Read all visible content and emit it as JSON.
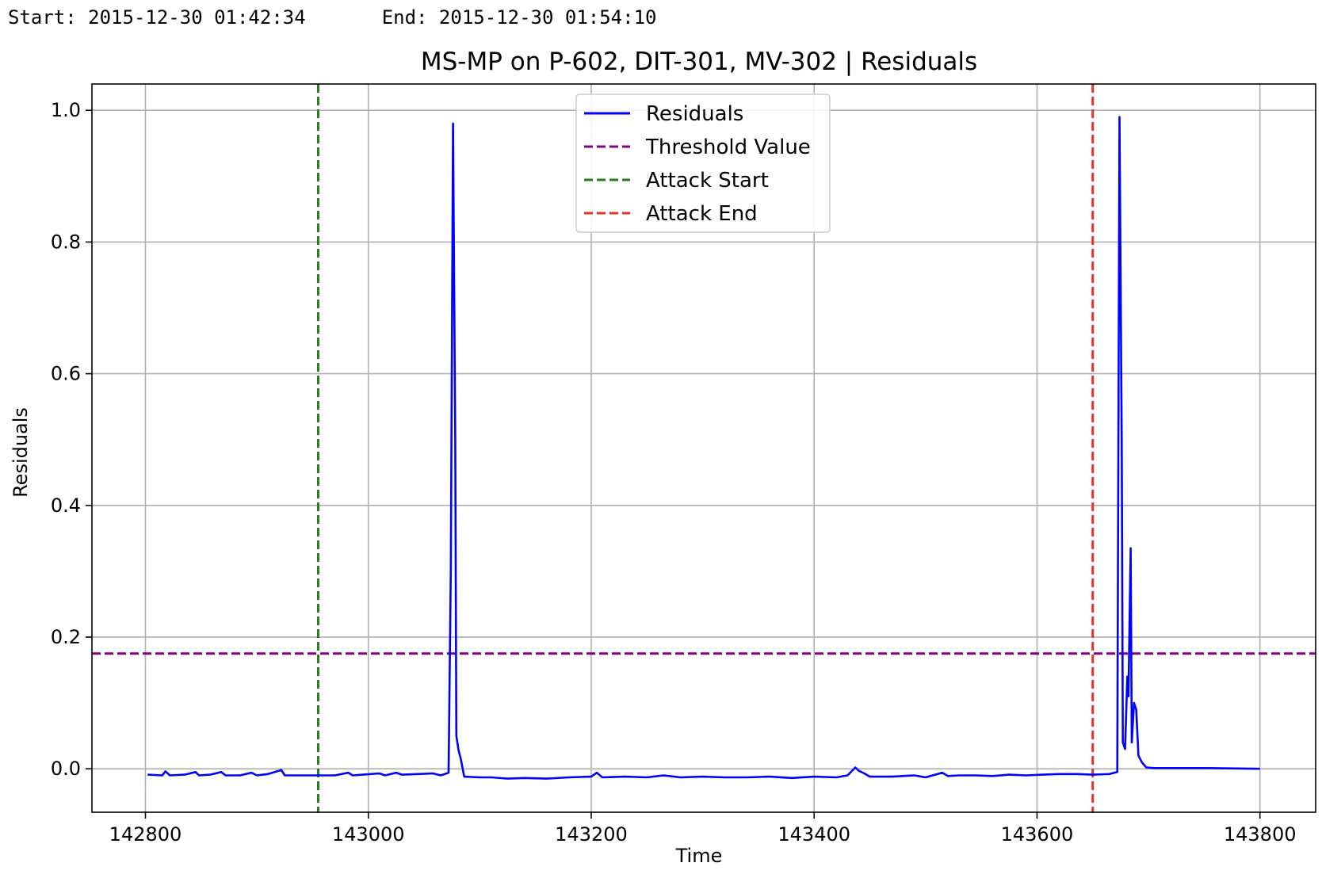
{
  "header": {
    "start_text": "Start: 2015-12-30 01:42:34",
    "end_text": "End: 2015-12-30 01:54:10"
  },
  "chart_data": {
    "type": "line",
    "title": "MS-MP  on  P-602, DIT-301, MV-302  |  Residuals",
    "xlabel": "Time",
    "ylabel": "Residuals",
    "xlim": [
      142752,
      143850
    ],
    "ylim": [
      -0.066,
      1.04
    ],
    "xticks": [
      142800,
      143000,
      143200,
      143400,
      143600,
      143800
    ],
    "yticks": [
      0.0,
      0.2,
      0.4,
      0.6,
      0.8,
      1.0
    ],
    "ytick_labels": [
      "0.0",
      "0.2",
      "0.4",
      "0.6",
      "0.8",
      "1.0"
    ],
    "grid": true,
    "legend_position": "top-center",
    "legend": [
      {
        "label": "Residuals",
        "color": "#0000ff",
        "style": "solid"
      },
      {
        "label": "Threshold Value",
        "color": "#800080",
        "style": "dashed"
      },
      {
        "label": "Attack Start",
        "color": "#2a7a1e",
        "style": "dashed"
      },
      {
        "label": "Attack End",
        "color": "#e8302a",
        "style": "dashed"
      }
    ],
    "threshold": 0.175,
    "attack_start": 142955,
    "attack_end": 143650,
    "series": [
      {
        "name": "Residuals",
        "color": "#0000ff",
        "points": [
          [
            142802,
            -0.009
          ],
          [
            142815,
            -0.01
          ],
          [
            142818,
            -0.004
          ],
          [
            142822,
            -0.01
          ],
          [
            142835,
            -0.009
          ],
          [
            142845,
            -0.005
          ],
          [
            142848,
            -0.01
          ],
          [
            142858,
            -0.009
          ],
          [
            142868,
            -0.005
          ],
          [
            142872,
            -0.01
          ],
          [
            142885,
            -0.01
          ],
          [
            142895,
            -0.006
          ],
          [
            142900,
            -0.01
          ],
          [
            142910,
            -0.008
          ],
          [
            142922,
            -0.002
          ],
          [
            142925,
            -0.01
          ],
          [
            142940,
            -0.01
          ],
          [
            142955,
            -0.01
          ],
          [
            142970,
            -0.01
          ],
          [
            142982,
            -0.006
          ],
          [
            142986,
            -0.01
          ],
          [
            142995,
            -0.009
          ],
          [
            143010,
            -0.007
          ],
          [
            143015,
            -0.01
          ],
          [
            143025,
            -0.006
          ],
          [
            143030,
            -0.009
          ],
          [
            143045,
            -0.008
          ],
          [
            143058,
            -0.007
          ],
          [
            143065,
            -0.01
          ],
          [
            143072,
            -0.006
          ],
          [
            143074,
            0.3
          ],
          [
            143076,
            0.98
          ],
          [
            143078,
            0.5
          ],
          [
            143079,
            0.05
          ],
          [
            143081,
            0.028
          ],
          [
            143083,
            0.015
          ],
          [
            143086,
            -0.012
          ],
          [
            143100,
            -0.013
          ],
          [
            143110,
            -0.013
          ],
          [
            143125,
            -0.015
          ],
          [
            143140,
            -0.014
          ],
          [
            143160,
            -0.015
          ],
          [
            143180,
            -0.013
          ],
          [
            143200,
            -0.012
          ],
          [
            143205,
            -0.006
          ],
          [
            143210,
            -0.013
          ],
          [
            143230,
            -0.012
          ],
          [
            143250,
            -0.013
          ],
          [
            143265,
            -0.01
          ],
          [
            143280,
            -0.013
          ],
          [
            143300,
            -0.012
          ],
          [
            143320,
            -0.013
          ],
          [
            143340,
            -0.013
          ],
          [
            143360,
            -0.012
          ],
          [
            143380,
            -0.014
          ],
          [
            143400,
            -0.012
          ],
          [
            143420,
            -0.013
          ],
          [
            143430,
            -0.01
          ],
          [
            143437,
            0.002
          ],
          [
            143440,
            -0.003
          ],
          [
            143445,
            -0.007
          ],
          [
            143450,
            -0.012
          ],
          [
            143470,
            -0.012
          ],
          [
            143490,
            -0.01
          ],
          [
            143500,
            -0.013
          ],
          [
            143515,
            -0.006
          ],
          [
            143520,
            -0.011
          ],
          [
            143530,
            -0.01
          ],
          [
            143545,
            -0.01
          ],
          [
            143560,
            -0.011
          ],
          [
            143575,
            -0.009
          ],
          [
            143590,
            -0.01
          ],
          [
            143605,
            -0.009
          ],
          [
            143620,
            -0.008
          ],
          [
            143635,
            -0.008
          ],
          [
            143650,
            -0.009
          ],
          [
            143665,
            -0.008
          ],
          [
            143672,
            -0.005
          ],
          [
            143674,
            0.99
          ],
          [
            143676,
            0.5
          ],
          [
            143677,
            0.04
          ],
          [
            143679,
            0.03
          ],
          [
            143681,
            0.14
          ],
          [
            143682,
            0.11
          ],
          [
            143684,
            0.335
          ],
          [
            143685,
            0.04
          ],
          [
            143687,
            0.1
          ],
          [
            143689,
            0.09
          ],
          [
            143691,
            0.02
          ],
          [
            143694,
            0.01
          ],
          [
            143698,
            0.002
          ],
          [
            143705,
            0.001
          ],
          [
            143750,
            0.001
          ],
          [
            143800,
            0.0
          ]
        ]
      }
    ]
  }
}
